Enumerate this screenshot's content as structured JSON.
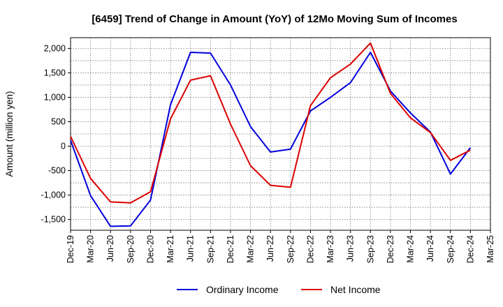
{
  "chart_data": {
    "type": "line",
    "title": "[6459]  Trend of Change in Amount (YoY) of 12Mo Moving Sum of Incomes",
    "xlabel": "",
    "ylabel": "Amount (million yen)",
    "ylim": [
      -1720,
      2220
    ],
    "yticks": [
      2000,
      1500,
      1000,
      500,
      0,
      -500,
      -1000,
      -1500
    ],
    "ytick_labels": [
      "2,000",
      "1,500",
      "1,000",
      "500",
      "0",
      "-500",
      "-1,000",
      "-1,500"
    ],
    "categories": [
      "Dec-19",
      "Mar-20",
      "Jun-20",
      "Sep-20",
      "Dec-20",
      "Mar-21",
      "Jun-21",
      "Sep-21",
      "Dec-21",
      "Mar-22",
      "Jun-22",
      "Sep-22",
      "Dec-22",
      "Mar-23",
      "Jun-23",
      "Sep-23",
      "Dec-23",
      "Mar-24",
      "Jun-24",
      "Sep-24",
      "Dec-24",
      "Mar-25"
    ],
    "grid": true,
    "legend_position": "bottom",
    "series": [
      {
        "name": "Ordinary Income",
        "color": "#0000dd",
        "values": [
          120,
          -1010,
          -1640,
          -1630,
          -1100,
          850,
          1920,
          1905,
          1250,
          400,
          -120,
          -60,
          720,
          1000,
          1300,
          1920,
          1130,
          680,
          290,
          -570,
          -30,
          null
        ]
      },
      {
        "name": "Net Income",
        "color": "#dd0000",
        "values": [
          200,
          -660,
          -1140,
          -1160,
          -930,
          560,
          1350,
          1440,
          450,
          -400,
          -800,
          -840,
          830,
          1400,
          1680,
          2110,
          1080,
          580,
          280,
          -290,
          -80,
          null
        ]
      }
    ]
  }
}
